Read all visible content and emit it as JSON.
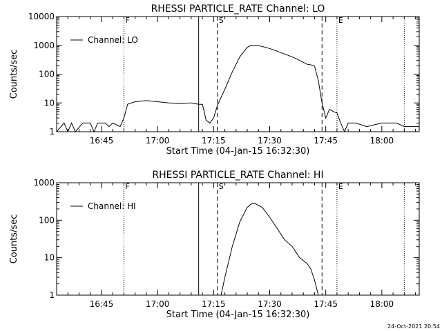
{
  "chart_data": [
    {
      "type": "line",
      "title": "RHESSI PARTICLE_RATE Channel: LO",
      "xlabel": "Start Time (04-Jan-15 16:32:30)",
      "ylabel": "Counts/sec",
      "y_scale": "log",
      "ylim": [
        1,
        10000
      ],
      "xlim": [
        "16:33",
        "18:10"
      ],
      "y_tick_labels": [
        "1",
        "10",
        "100",
        "1000",
        "10000"
      ],
      "x_tick_labels": [
        "16:45",
        "17:00",
        "17:15",
        "17:30",
        "17:45",
        "18:00"
      ],
      "legend": {
        "position": "top-left",
        "entries": [
          "Channel: LO"
        ]
      },
      "markers": [
        {
          "label": "F",
          "time": "16:51",
          "style": "dotted"
        },
        {
          "label": "",
          "time": "17:11",
          "style": "solid"
        },
        {
          "label": "S",
          "time": "17:16",
          "style": "dashed"
        },
        {
          "label": "",
          "time": "17:44",
          "style": "dashed"
        },
        {
          "label": "E",
          "time": "17:48",
          "style": "dotted"
        },
        {
          "label": "",
          "time": "18:06",
          "style": "dotted"
        }
      ],
      "series": [
        {
          "name": "Channel: LO",
          "points": [
            [
              "16:33",
              1
            ],
            [
              "16:35",
              2
            ],
            [
              "16:36",
              1
            ],
            [
              "16:37",
              2
            ],
            [
              "16:38",
              1
            ],
            [
              "16:40",
              2
            ],
            [
              "16:42",
              2
            ],
            [
              "16:43",
              1
            ],
            [
              "16:44",
              2
            ],
            [
              "16:46",
              2
            ],
            [
              "16:47",
              1.5
            ],
            [
              "16:48",
              2
            ],
            [
              "16:50",
              1.5
            ],
            [
              "16:51",
              3
            ],
            [
              "16:52",
              9
            ],
            [
              "16:54",
              11
            ],
            [
              "16:57",
              12
            ],
            [
              "17:00",
              11
            ],
            [
              "17:03",
              10
            ],
            [
              "17:06",
              9.5
            ],
            [
              "17:09",
              10
            ],
            [
              "17:11",
              9
            ],
            [
              "17:12",
              9
            ],
            [
              "17:13",
              2.5
            ],
            [
              "17:14",
              2
            ],
            [
              "17:15",
              3
            ],
            [
              "17:16",
              8
            ],
            [
              "17:18",
              30
            ],
            [
              "17:20",
              120
            ],
            [
              "17:22",
              400
            ],
            [
              "17:24",
              850
            ],
            [
              "17:25",
              1000
            ],
            [
              "17:27",
              980
            ],
            [
              "17:29",
              850
            ],
            [
              "17:31",
              700
            ],
            [
              "17:33",
              560
            ],
            [
              "17:36",
              400
            ],
            [
              "17:38",
              300
            ],
            [
              "17:40",
              220
            ],
            [
              "17:41",
              210
            ],
            [
              "17:42",
              190
            ],
            [
              "17:43",
              60
            ],
            [
              "17:44",
              10
            ],
            [
              "17:45",
              3
            ],
            [
              "17:46",
              6
            ],
            [
              "17:47",
              5
            ],
            [
              "17:48",
              4.5
            ],
            [
              "17:49",
              2
            ],
            [
              "17:50",
              1
            ],
            [
              "17:51",
              2
            ],
            [
              "17:53",
              2
            ],
            [
              "17:56",
              1.5
            ],
            [
              "18:00",
              2
            ],
            [
              "18:04",
              2
            ],
            [
              "18:06",
              1.5
            ],
            [
              "18:08",
              1.5
            ],
            [
              "18:10",
              1.5
            ]
          ]
        }
      ]
    },
    {
      "type": "line",
      "title": "RHESSI PARTICLE_RATE Channel: HI",
      "xlabel": "Start Time (04-Jan-15 16:32:30)",
      "ylabel": "Counts/sec",
      "y_scale": "log",
      "ylim": [
        1,
        1000
      ],
      "xlim": [
        "16:33",
        "18:10"
      ],
      "y_tick_labels": [
        "1",
        "10",
        "100",
        "1000"
      ],
      "x_tick_labels": [
        "16:45",
        "17:00",
        "17:15",
        "17:30",
        "17:45",
        "18:00"
      ],
      "legend": {
        "position": "top-left",
        "entries": [
          "Channel: HI"
        ]
      },
      "markers": [
        {
          "label": "F",
          "time": "16:51",
          "style": "dotted"
        },
        {
          "label": "",
          "time": "17:11",
          "style": "solid"
        },
        {
          "label": "S",
          "time": "17:16",
          "style": "dashed"
        },
        {
          "label": "",
          "time": "17:44",
          "style": "dashed"
        },
        {
          "label": "E",
          "time": "17:48",
          "style": "dotted"
        },
        {
          "label": "",
          "time": "18:06",
          "style": "dotted"
        }
      ],
      "series": [
        {
          "name": "Channel: HI",
          "points": [
            [
              "17:17",
              1
            ],
            [
              "17:18",
              3
            ],
            [
              "17:20",
              20
            ],
            [
              "17:22",
              90
            ],
            [
              "17:24",
              220
            ],
            [
              "17:25",
              270
            ],
            [
              "17:26",
              280
            ],
            [
              "17:28",
              220
            ],
            [
              "17:30",
              120
            ],
            [
              "17:32",
              60
            ],
            [
              "17:34",
              30
            ],
            [
              "17:36",
              20
            ],
            [
              "17:38",
              10
            ],
            [
              "17:40",
              7
            ],
            [
              "17:41",
              5
            ],
            [
              "17:42",
              2.5
            ],
            [
              "17:43",
              1
            ]
          ]
        }
      ]
    }
  ],
  "footer": {
    "timestamp": "24-Oct-2021 20:54"
  }
}
